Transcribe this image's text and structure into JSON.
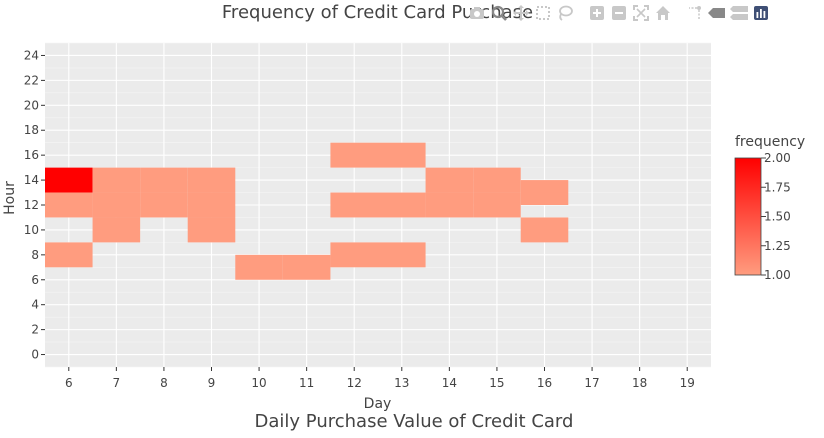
{
  "chart_data": {
    "type": "heatmap",
    "title": "Frequency of Credit Card Purchase",
    "xlabel": "Day",
    "ylabel": "Hour",
    "subtitle": "Daily Purchase Value of Credit Card",
    "xlim": [
      5.5,
      19.5
    ],
    "ylim": [
      -1,
      25
    ],
    "x_ticks": [
      6,
      7,
      8,
      9,
      10,
      11,
      12,
      13,
      14,
      15,
      16,
      17,
      18,
      19
    ],
    "y_ticks": [
      0,
      2,
      4,
      6,
      8,
      10,
      12,
      14,
      16,
      18,
      20,
      22,
      24
    ],
    "bin_height": 2,
    "grid": true,
    "colorscale": {
      "low": "#ff9c7f",
      "high": "#ff0000"
    },
    "colorbar": {
      "title": "frequency",
      "min": 1,
      "max": 2,
      "ticks": [
        1.0,
        1.25,
        1.5,
        1.75,
        2.0
      ],
      "tick_labels": [
        "1.00",
        "1.25",
        "1.50",
        "1.75",
        "2.00"
      ]
    },
    "cells": [
      {
        "day": 6,
        "hour": 14,
        "value": 2
      },
      {
        "day": 6,
        "hour": 12,
        "value": 1
      },
      {
        "day": 6,
        "hour": 8,
        "value": 1
      },
      {
        "day": 7,
        "hour": 14,
        "value": 1
      },
      {
        "day": 7,
        "hour": 12,
        "value": 1
      },
      {
        "day": 7,
        "hour": 10,
        "value": 1
      },
      {
        "day": 8,
        "hour": 14,
        "value": 1
      },
      {
        "day": 8,
        "hour": 12,
        "value": 1
      },
      {
        "day": 9,
        "hour": 14,
        "value": 1
      },
      {
        "day": 9,
        "hour": 12,
        "value": 1
      },
      {
        "day": 9,
        "hour": 10,
        "value": 1
      },
      {
        "day": 10,
        "hour": 7,
        "value": 1
      },
      {
        "day": 11,
        "hour": 7,
        "value": 1
      },
      {
        "day": 12,
        "hour": 16,
        "value": 1
      },
      {
        "day": 12,
        "hour": 12,
        "value": 1
      },
      {
        "day": 12,
        "hour": 8,
        "value": 1
      },
      {
        "day": 13,
        "hour": 16,
        "value": 1
      },
      {
        "day": 13,
        "hour": 12,
        "value": 1
      },
      {
        "day": 13,
        "hour": 8,
        "value": 1
      },
      {
        "day": 14,
        "hour": 14,
        "value": 1
      },
      {
        "day": 14,
        "hour": 12,
        "value": 1
      },
      {
        "day": 15,
        "hour": 14,
        "value": 1
      },
      {
        "day": 15,
        "hour": 12,
        "value": 1
      },
      {
        "day": 16,
        "hour": 13,
        "value": 1
      },
      {
        "day": 16,
        "hour": 10,
        "value": 1
      }
    ]
  },
  "modebar": {
    "icons": [
      "camera-icon",
      "zoom-icon",
      "pan-icon",
      "box-select-icon",
      "lasso-icon",
      "zoom-in-icon",
      "zoom-out-icon",
      "autoscale-icon",
      "home-icon",
      "spike-lines-icon",
      "hover-closest-icon",
      "hover-compare-icon",
      "plotly-logo-icon"
    ]
  }
}
